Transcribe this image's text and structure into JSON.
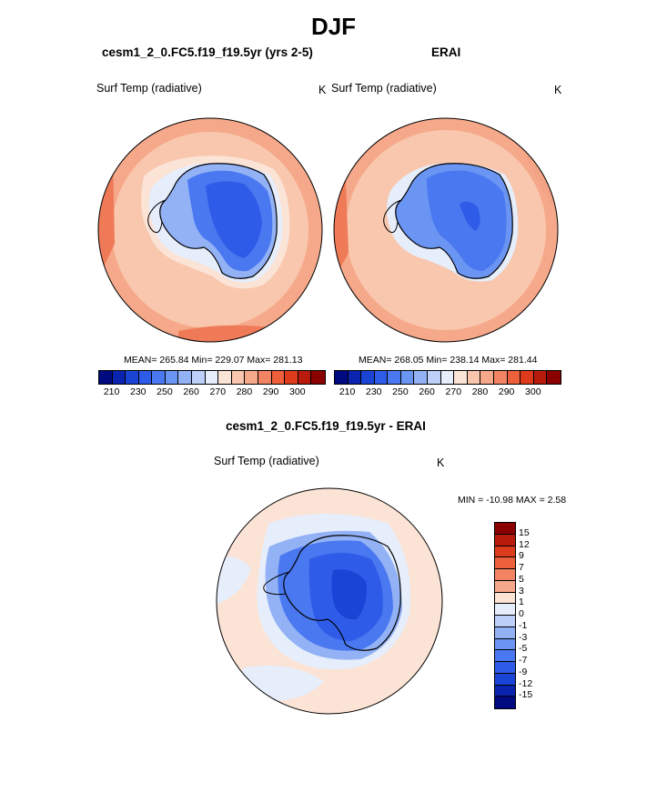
{
  "title": "DJF",
  "panels": {
    "model": {
      "title": "cesm1_2_0.FC5.f19_f19.5yr (yrs 2-5)",
      "variable": "Surf Temp (radiative)",
      "units": "K",
      "stats": "MEAN= 265.84  Min= 229.07  Max= 281.13"
    },
    "obs": {
      "title": "ERAI",
      "variable": "Surf Temp (radiative)",
      "units": "K",
      "stats": "MEAN= 268.05  Min= 238.14  Max= 281.44"
    },
    "diff": {
      "title": "cesm1_2_0.FC5.f19_f19.5yr - ERAI",
      "variable": "Surf Temp (radiative)",
      "units": "K",
      "minmax": "MIN = -10.98 MAX =   2.58"
    }
  },
  "colors": {
    "abs_scale": [
      "#000a80",
      "#0a24b0",
      "#1a44d6",
      "#2e5ce8",
      "#4a78f0",
      "#6b95f2",
      "#93b2f6",
      "#bdd0fa",
      "#e6eefc",
      "#fbe3d6",
      "#f9c6ad",
      "#f6a98a",
      "#f28464",
      "#ee5f3c",
      "#de3a1c",
      "#b81a0c",
      "#8a0000"
    ],
    "diff_scale": [
      "#8a0000",
      "#b81a0c",
      "#de3a1c",
      "#ee5f3c",
      "#f28464",
      "#f6a98a",
      "#fbe3d6",
      "#e6eefc",
      "#bdd0fa",
      "#93b2f6",
      "#6b95f2",
      "#4a78f0",
      "#2e5ce8",
      "#1a44d6",
      "#0a24b0",
      "#000a80"
    ],
    "ocean_warm": "#f8c7ad",
    "ocean_warmer": "#f4a486",
    "ocean_hot": "#ee7a58",
    "ice_pale": "#e6eefc",
    "ice_mid": "#93b2f6",
    "land_cold": "#4a78f0",
    "land_colder": "#2e5ce8",
    "diff_bg": "#fbe3d6"
  },
  "abs_colorbar_labels": [
    "210",
    "230",
    "250",
    "260",
    "270",
    "280",
    "290",
    "300"
  ],
  "diff_colorbar_labels": [
    "15",
    "12",
    "9",
    "7",
    "5",
    "3",
    "1",
    "0",
    "-1",
    "-3",
    "-5",
    "-7",
    "-9",
    "-12",
    "-15"
  ]
}
